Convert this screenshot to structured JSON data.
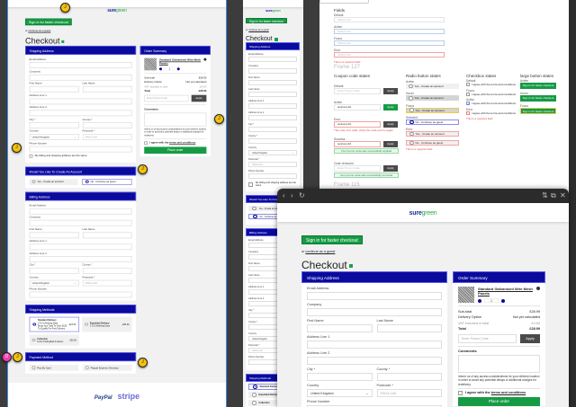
{
  "brand": {
    "logo_a": "sure",
    "logo_b": "green",
    "accent": "#0a0a9c",
    "green": "#169b45"
  },
  "checkout": {
    "signin": "Sign in for faster checkout",
    "guest_prefix": "or",
    "guest_link": "continue as a guest",
    "title": "Checkout",
    "shipping_title": "Shipping Address",
    "rows": [
      [
        {
          "label": "Email Address"
        }
      ],
      [
        {
          "label": "Company"
        }
      ],
      [
        {
          "label": "First Name"
        },
        {
          "label": "Last Name"
        }
      ],
      [
        {
          "label": "Address Line 1"
        }
      ],
      [
        {
          "label": "Address Line 2"
        }
      ],
      [
        {
          "label": "City *"
        },
        {
          "label": "County *"
        }
      ],
      [
        {
          "label": "Country",
          "value": "United Kingdom",
          "select": true
        },
        {
          "label": "Postcode *",
          "placeholder": "SW1A 1AA"
        }
      ],
      [
        {
          "label": "Phone Number"
        }
      ]
    ],
    "same_address": "My billing and shipping address are the same",
    "account_title": "Would You Like To Create An Account",
    "account_yes": "Yes - Create an account",
    "account_no": "No - Continue as guest",
    "billing_title": "Billing Address",
    "methods_title": "Shipping Methods",
    "methods": [
      {
        "name": "Standard Delivery",
        "detail": "3 To 5 Working Days",
        "note": "Bring Your Total To Over £150 To Qualify For Free Delivery",
        "price": "£23.99",
        "selected": true
      },
      {
        "name": "Expedited Delivery",
        "detail": "1 To 3 Working Days",
        "note": "",
        "price": "£65.99",
        "selected": false
      },
      {
        "name": "Collection",
        "detail": "From Frodingfield In Essex",
        "note": "",
        "price": "£00.00",
        "selected": false
      }
    ],
    "payment_title": "Payment Method",
    "payments": [
      {
        "name": "Pay By Card"
      },
      {
        "name": "Paypal Express Checkout"
      }
    ],
    "summary": {
      "title": "Order Summary",
      "product": "Standard Galvanised Wire Mesh Panels",
      "qty": "1",
      "lines": [
        {
          "label": "Sub-total",
          "value": "£28.99",
          "kind": ""
        },
        {
          "label": "Delivery Option",
          "value": "Not yet calculated",
          "kind": ""
        },
        {
          "label": "VAT included in total",
          "value": "£4.83",
          "kind": "vat"
        },
        {
          "label": "Total",
          "value": "£28.99",
          "kind": "tot"
        }
      ],
      "promo_placeholder": "Enter Promo Code",
      "apply": "Apply",
      "comments": "Comments",
      "info": "Inform us of any access considerations for your delivery location in order to avoid any potential delays or additional charges for redelivery.",
      "terms_prefix": "I agree with the",
      "terms_link": "terms and conditions",
      "place_order": "Place order"
    }
  },
  "footer": {
    "paypal": "PayPal",
    "stripe": "stripe"
  },
  "comments_badges": [
    "J",
    "J",
    "J",
    "J",
    "D",
    "J",
    "J"
  ],
  "states": {
    "fields_title": "Fields",
    "field_states": [
      "Default",
      "Active",
      "Focus",
      "Error"
    ],
    "placeholder": "SW1A 1AA",
    "required_error": "This is a required field",
    "frame127": "Frame 127",
    "frame115": "Frame 115",
    "coupon_title": "Coupon code states",
    "coupon": [
      {
        "label": "Default",
        "value": "Enter Promo Code",
        "kind": "def"
      },
      {
        "label": "Active",
        "value": "welcome10",
        "kind": "act"
      },
      {
        "label": "Error",
        "value": "welcome10",
        "kind": "err",
        "msg": "This code isn't valid. Verify the code and try again"
      },
      {
        "label": "Success",
        "value": "welcome10",
        "kind": "ok",
        "msg": "Your promo code was successfully applied"
      },
      {
        "label": "Code removed",
        "value": "Enter Promo Code",
        "kind": "rem",
        "msg": "Your promo code was successfully removed"
      }
    ],
    "radio_title": "Radio button states",
    "radio": [
      {
        "label": "Active",
        "text": "Yes - Create an account"
      },
      {
        "label": "Hover",
        "text": "Yes - Create an account"
      },
      {
        "label": "Focus",
        "text": "Yes - Create an account"
      },
      {
        "label": "Selected",
        "text": "No - Continue as guest"
      },
      {
        "label": "Error",
        "text": "Yes - Create an account",
        "text2": "No - Continue as guest"
      }
    ],
    "checkbox_title": "Checkbox states",
    "checkbox": [
      "Default",
      "Focus",
      "Active",
      "Error"
    ],
    "checkbox_text": "I agree with the terms and conditions",
    "button_title": "large button states",
    "buttons": [
      "Active",
      "Hover",
      "Focus"
    ],
    "button_text": "Sign in for faster checkout"
  },
  "browser": {
    "back": "‹",
    "forward": "›",
    "reload": "↻",
    "settings": "⇅",
    "popout": "⧉",
    "close": "✕"
  }
}
